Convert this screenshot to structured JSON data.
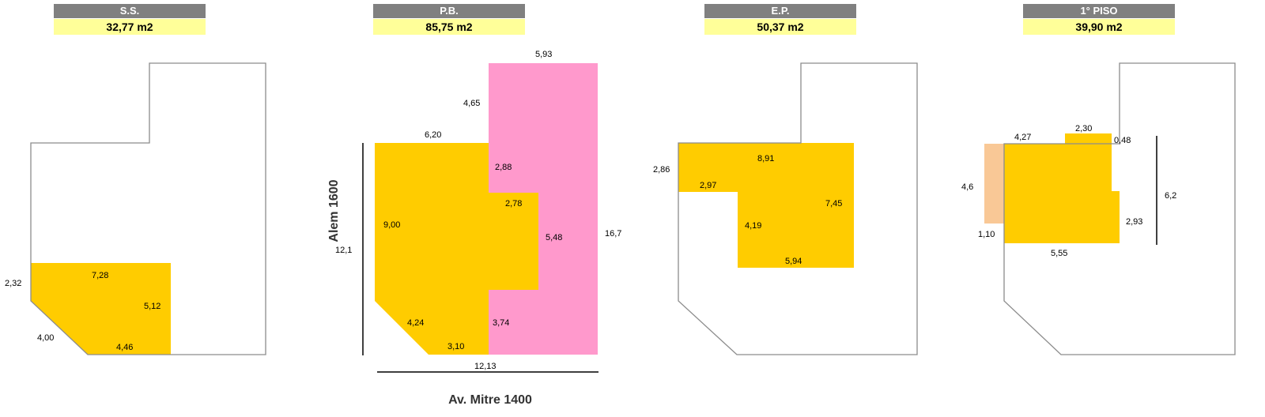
{
  "plans": [
    {
      "title": "S.S.",
      "area": "32,77 m2",
      "dimensions": [
        "7,28",
        "2,32",
        "5,12",
        "4,00",
        "4,46"
      ]
    },
    {
      "title": "P.B.",
      "area": "85,75 m2",
      "dimensions": [
        "5,93",
        "4,65",
        "6,20",
        "2,88",
        "2,78",
        "9,00",
        "16,7",
        "5,48",
        "12,1",
        "4,24",
        "3,74",
        "3,10",
        "12,13"
      ],
      "streets": {
        "left": "Alem  1600",
        "bottom": "Av. Mitre 1400"
      }
    },
    {
      "title": "E.P.",
      "area": "50,37 m2",
      "dimensions": [
        "8,91",
        "2,86",
        "2,97",
        "7,45",
        "4,19",
        "5,94"
      ]
    },
    {
      "title": "1° PISO",
      "area": "39,90 m2",
      "dimensions": [
        "2,30",
        "4,27",
        "0,48",
        "4,6",
        "6,2",
        "2,93",
        "1,10",
        "5,55"
      ]
    }
  ],
  "colors": {
    "header_bg": "#808080",
    "area_bg": "#ffff99",
    "occupied": "#ffcc00",
    "ground_extension": "#ff99cc",
    "balcony": "#f9c896",
    "outline": "#8c8c8c"
  }
}
